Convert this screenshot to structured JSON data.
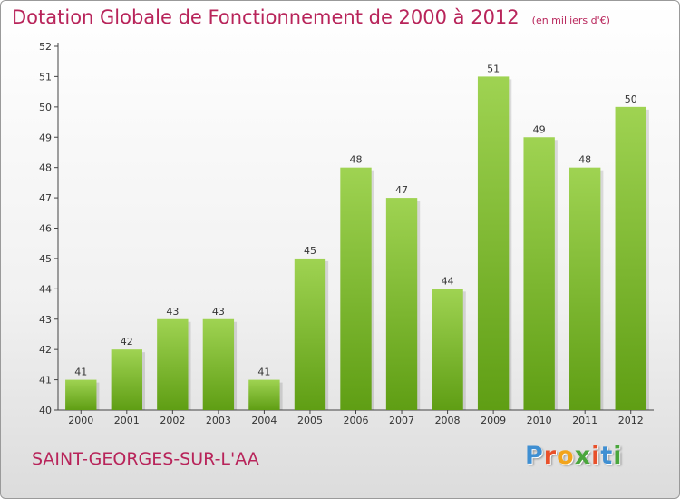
{
  "title": "Dotation Globale de Fonctionnement de 2000 à 2012",
  "unit": "(en milliers d'€)",
  "commune": "SAINT-GEORGES-SUR-L'AA",
  "logo": {
    "letters": [
      "P",
      "r",
      "o",
      "x",
      "i",
      "t",
      "i"
    ],
    "colors": [
      "#3f8fd2",
      "#e8502a",
      "#f2a41c",
      "#4aa63c",
      "#e8502a",
      "#3f8fd2",
      "#4aa63c"
    ]
  },
  "colors": {
    "bar_light": "#9fd352",
    "bar_dark": "#5f9e14",
    "title": "#b8245a"
  },
  "chart_data": {
    "type": "bar",
    "categories": [
      "2000",
      "2001",
      "2002",
      "2003",
      "2004",
      "2005",
      "2006",
      "2007",
      "2008",
      "2009",
      "2010",
      "2011",
      "2012"
    ],
    "values": [
      41,
      42,
      43,
      43,
      41,
      45,
      48,
      47,
      44,
      51,
      49,
      48,
      50
    ],
    "title": "Dotation Globale de Fonctionnement de 2000 à 2012",
    "ylim": [
      40,
      52
    ],
    "yticks": [
      "40",
      "41",
      "42",
      "43",
      "44",
      "45",
      "46",
      "47",
      "48",
      "49",
      "50",
      "51",
      "52"
    ],
    "grid": false,
    "legend": "none"
  }
}
